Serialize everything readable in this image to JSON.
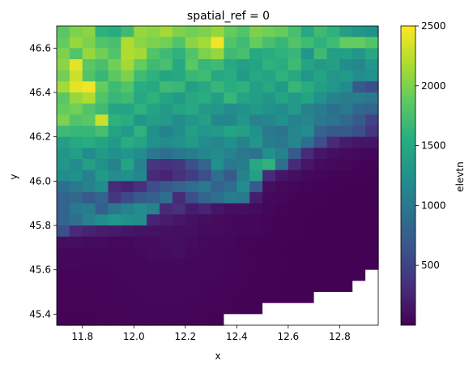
{
  "chart_data": {
    "type": "heatmap",
    "title": "spatial_ref = 0",
    "xlabel": "x",
    "ylabel": "y",
    "colorbar_label": "elevtn",
    "colormap": "viridis",
    "x_ticks": [
      "11.8",
      "12.0",
      "12.2",
      "12.4",
      "12.6",
      "12.8"
    ],
    "y_ticks": [
      "46.6",
      "46.4",
      "46.2",
      "46.0",
      "45.8",
      "45.6",
      "45.4"
    ],
    "colorbar_ticks": [
      "500",
      "1000",
      "1500",
      "2000",
      "2500"
    ],
    "xlim": [
      11.7,
      12.95
    ],
    "ylim": [
      45.35,
      46.7
    ],
    "value_range": [
      0,
      2500
    ],
    "nodata_color": "#ffffff",
    "grid": false,
    "rows": 27,
    "cols": 25,
    "cell_x": [
      11.725,
      11.775,
      11.825,
      11.875,
      11.925,
      11.975,
      12.025,
      12.075,
      12.125,
      12.175,
      12.225,
      12.275,
      12.325,
      12.375,
      12.425,
      12.475,
      12.525,
      12.575,
      12.625,
      12.675,
      12.725,
      12.775,
      12.825,
      12.875,
      12.925
    ],
    "cell_y": [
      46.675,
      46.625,
      46.575,
      46.525,
      46.475,
      46.425,
      46.375,
      46.325,
      46.275,
      46.225,
      46.175,
      46.125,
      46.075,
      46.025,
      45.975,
      45.925,
      45.875,
      45.825,
      45.775,
      45.725,
      45.675,
      45.625,
      45.575,
      45.525,
      45.475,
      45.425,
      45.375
    ],
    "values": [
      [
        1850,
        2000,
        2050,
        1600,
        1550,
        1700,
        2100,
        2050,
        2150,
        2000,
        1950,
        2000,
        2100,
        1900,
        1800,
        2000,
        1950,
        1900,
        1750,
        1500,
        1700,
        1600,
        1400,
        1300,
        1250
      ],
      [
        1900,
        2100,
        2000,
        1800,
        1750,
        2200,
        2050,
        2000,
        1950,
        1800,
        2050,
        2150,
        2450,
        1800,
        1700,
        1900,
        1750,
        1650,
        1800,
        1700,
        1600,
        1700,
        1900,
        1900,
        1800
      ],
      [
        2000,
        1800,
        2100,
        1950,
        1800,
        2200,
        2150,
        1800,
        1700,
        1600,
        1800,
        2000,
        2100,
        1700,
        1750,
        1500,
        1550,
        1600,
        1650,
        1300,
        1700,
        1400,
        1400,
        1300,
        1500
      ],
      [
        2050,
        2400,
        1850,
        1750,
        1950,
        2150,
        1900,
        1700,
        1750,
        1500,
        1850,
        1650,
        1700,
        1500,
        1400,
        1450,
        1600,
        1550,
        1700,
        1450,
        1350,
        1400,
        1200,
        1150,
        1300
      ],
      [
        1950,
        2300,
        1800,
        1650,
        1850,
        2000,
        1700,
        1600,
        1450,
        1500,
        1650,
        1700,
        1500,
        1550,
        1350,
        1500,
        1450,
        1600,
        1500,
        1300,
        1450,
        1300,
        1350,
        1200,
        1250
      ],
      [
        2150,
        2400,
        2450,
        1900,
        1700,
        1800,
        1550,
        1500,
        1700,
        1650,
        1400,
        1500,
        1650,
        1550,
        1600,
        1400,
        1500,
        1350,
        1650,
        1550,
        1400,
        1300,
        1200,
        700,
        600
      ],
      [
        1850,
        2100,
        2200,
        1800,
        1650,
        1700,
        1500,
        1600,
        1450,
        1350,
        1500,
        1550,
        1400,
        1650,
        1450,
        1400,
        1300,
        1450,
        1350,
        1450,
        1250,
        1100,
        1050,
        1050,
        1000
      ],
      [
        1900,
        1950,
        1800,
        1700,
        1450,
        1450,
        1600,
        1450,
        1350,
        1450,
        1500,
        1350,
        1300,
        1200,
        1250,
        1350,
        1250,
        1200,
        1350,
        1100,
        1050,
        900,
        1000,
        850,
        800
      ],
      [
        2000,
        1800,
        1850,
        2300,
        1600,
        1550,
        1300,
        1400,
        1350,
        1200,
        1300,
        1400,
        1150,
        1150,
        1300,
        1100,
        1150,
        1250,
        1100,
        1150,
        1000,
        950,
        850,
        700,
        500
      ],
      [
        1700,
        1650,
        1650,
        1750,
        1450,
        1350,
        1600,
        1250,
        1100,
        1200,
        1400,
        1300,
        1350,
        1450,
        1400,
        1250,
        1000,
        950,
        1150,
        1200,
        800,
        700,
        700,
        600,
        400
      ],
      [
        1400,
        1500,
        1550,
        1450,
        1350,
        1550,
        1450,
        1250,
        1200,
        1250,
        1350,
        1200,
        1150,
        1250,
        1100,
        1300,
        1050,
        1000,
        1150,
        900,
        600,
        300,
        200,
        150,
        150
      ],
      [
        1300,
        1400,
        1200,
        1350,
        1250,
        1300,
        1200,
        1000,
        900,
        1000,
        1050,
        1150,
        1200,
        1100,
        1000,
        950,
        1250,
        1100,
        700,
        300,
        150,
        100,
        80,
        60,
        40
      ],
      [
        1300,
        1200,
        1400,
        1250,
        1100,
        1450,
        1100,
        400,
        350,
        400,
        600,
        800,
        1250,
        1000,
        1050,
        1500,
        1600,
        900,
        300,
        150,
        80,
        60,
        40,
        30,
        20
      ],
      [
        1200,
        1250,
        1100,
        1350,
        1200,
        1250,
        1150,
        300,
        250,
        350,
        450,
        600,
        900,
        700,
        1100,
        1400,
        300,
        150,
        100,
        60,
        40,
        30,
        20,
        15,
        10
      ],
      [
        900,
        1000,
        1100,
        1200,
        300,
        250,
        350,
        600,
        700,
        800,
        900,
        1000,
        800,
        900,
        1200,
        700,
        100,
        60,
        40,
        30,
        20,
        15,
        10,
        10,
        10
      ],
      [
        800,
        850,
        700,
        800,
        400,
        550,
        700,
        750,
        900,
        300,
        600,
        800,
        900,
        1050,
        1000,
        200,
        60,
        40,
        30,
        20,
        15,
        10,
        10,
        10,
        10
      ],
      [
        800,
        1000,
        1050,
        750,
        1000,
        1100,
        1200,
        1100,
        300,
        350,
        200,
        250,
        150,
        100,
        100,
        80,
        50,
        30,
        20,
        15,
        10,
        10,
        10,
        10,
        10
      ],
      [
        800,
        900,
        1100,
        1200,
        1300,
        1250,
        1200,
        250,
        200,
        150,
        120,
        100,
        80,
        60,
        50,
        40,
        30,
        20,
        15,
        10,
        10,
        10,
        10,
        10,
        10
      ],
      [
        600,
        300,
        250,
        200,
        180,
        150,
        130,
        120,
        110,
        100,
        90,
        80,
        70,
        60,
        50,
        40,
        30,
        20,
        15,
        10,
        10,
        10,
        10,
        10,
        10
      ],
      [
        100,
        90,
        80,
        70,
        60,
        60,
        70,
        80,
        90,
        100,
        80,
        60,
        50,
        40,
        30,
        25,
        20,
        15,
        10,
        10,
        10,
        10,
        10,
        10,
        10
      ],
      [
        50,
        45,
        40,
        40,
        45,
        50,
        60,
        70,
        80,
        90,
        60,
        50,
        40,
        30,
        25,
        20,
        15,
        10,
        10,
        10,
        10,
        10,
        10,
        10,
        10
      ],
      [
        40,
        40,
        35,
        35,
        40,
        45,
        50,
        55,
        60,
        55,
        50,
        45,
        40,
        35,
        30,
        25,
        20,
        15,
        10,
        10,
        10,
        10,
        10,
        10,
        10
      ],
      [
        30,
        30,
        30,
        30,
        35,
        40,
        45,
        50,
        50,
        50,
        45,
        40,
        35,
        30,
        25,
        20,
        15,
        10,
        10,
        10,
        10,
        10,
        10,
        10,
        null
      ],
      [
        30,
        30,
        30,
        30,
        35,
        35,
        40,
        45,
        45,
        45,
        40,
        35,
        30,
        30,
        25,
        20,
        15,
        10,
        10,
        10,
        10,
        10,
        10,
        null,
        null
      ],
      [
        25,
        25,
        25,
        30,
        30,
        35,
        35,
        40,
        40,
        40,
        35,
        30,
        30,
        25,
        20,
        15,
        10,
        10,
        10,
        10,
        null,
        null,
        null,
        null,
        null
      ],
      [
        25,
        25,
        25,
        25,
        30,
        30,
        35,
        35,
        35,
        35,
        30,
        30,
        25,
        25,
        20,
        15,
        null,
        null,
        null,
        null,
        null,
        null,
        null,
        null,
        null
      ],
      [
        20,
        20,
        20,
        25,
        25,
        25,
        30,
        30,
        30,
        30,
        25,
        25,
        20,
        null,
        null,
        null,
        null,
        null,
        null,
        null,
        null,
        null,
        null,
        null,
        null
      ]
    ]
  }
}
